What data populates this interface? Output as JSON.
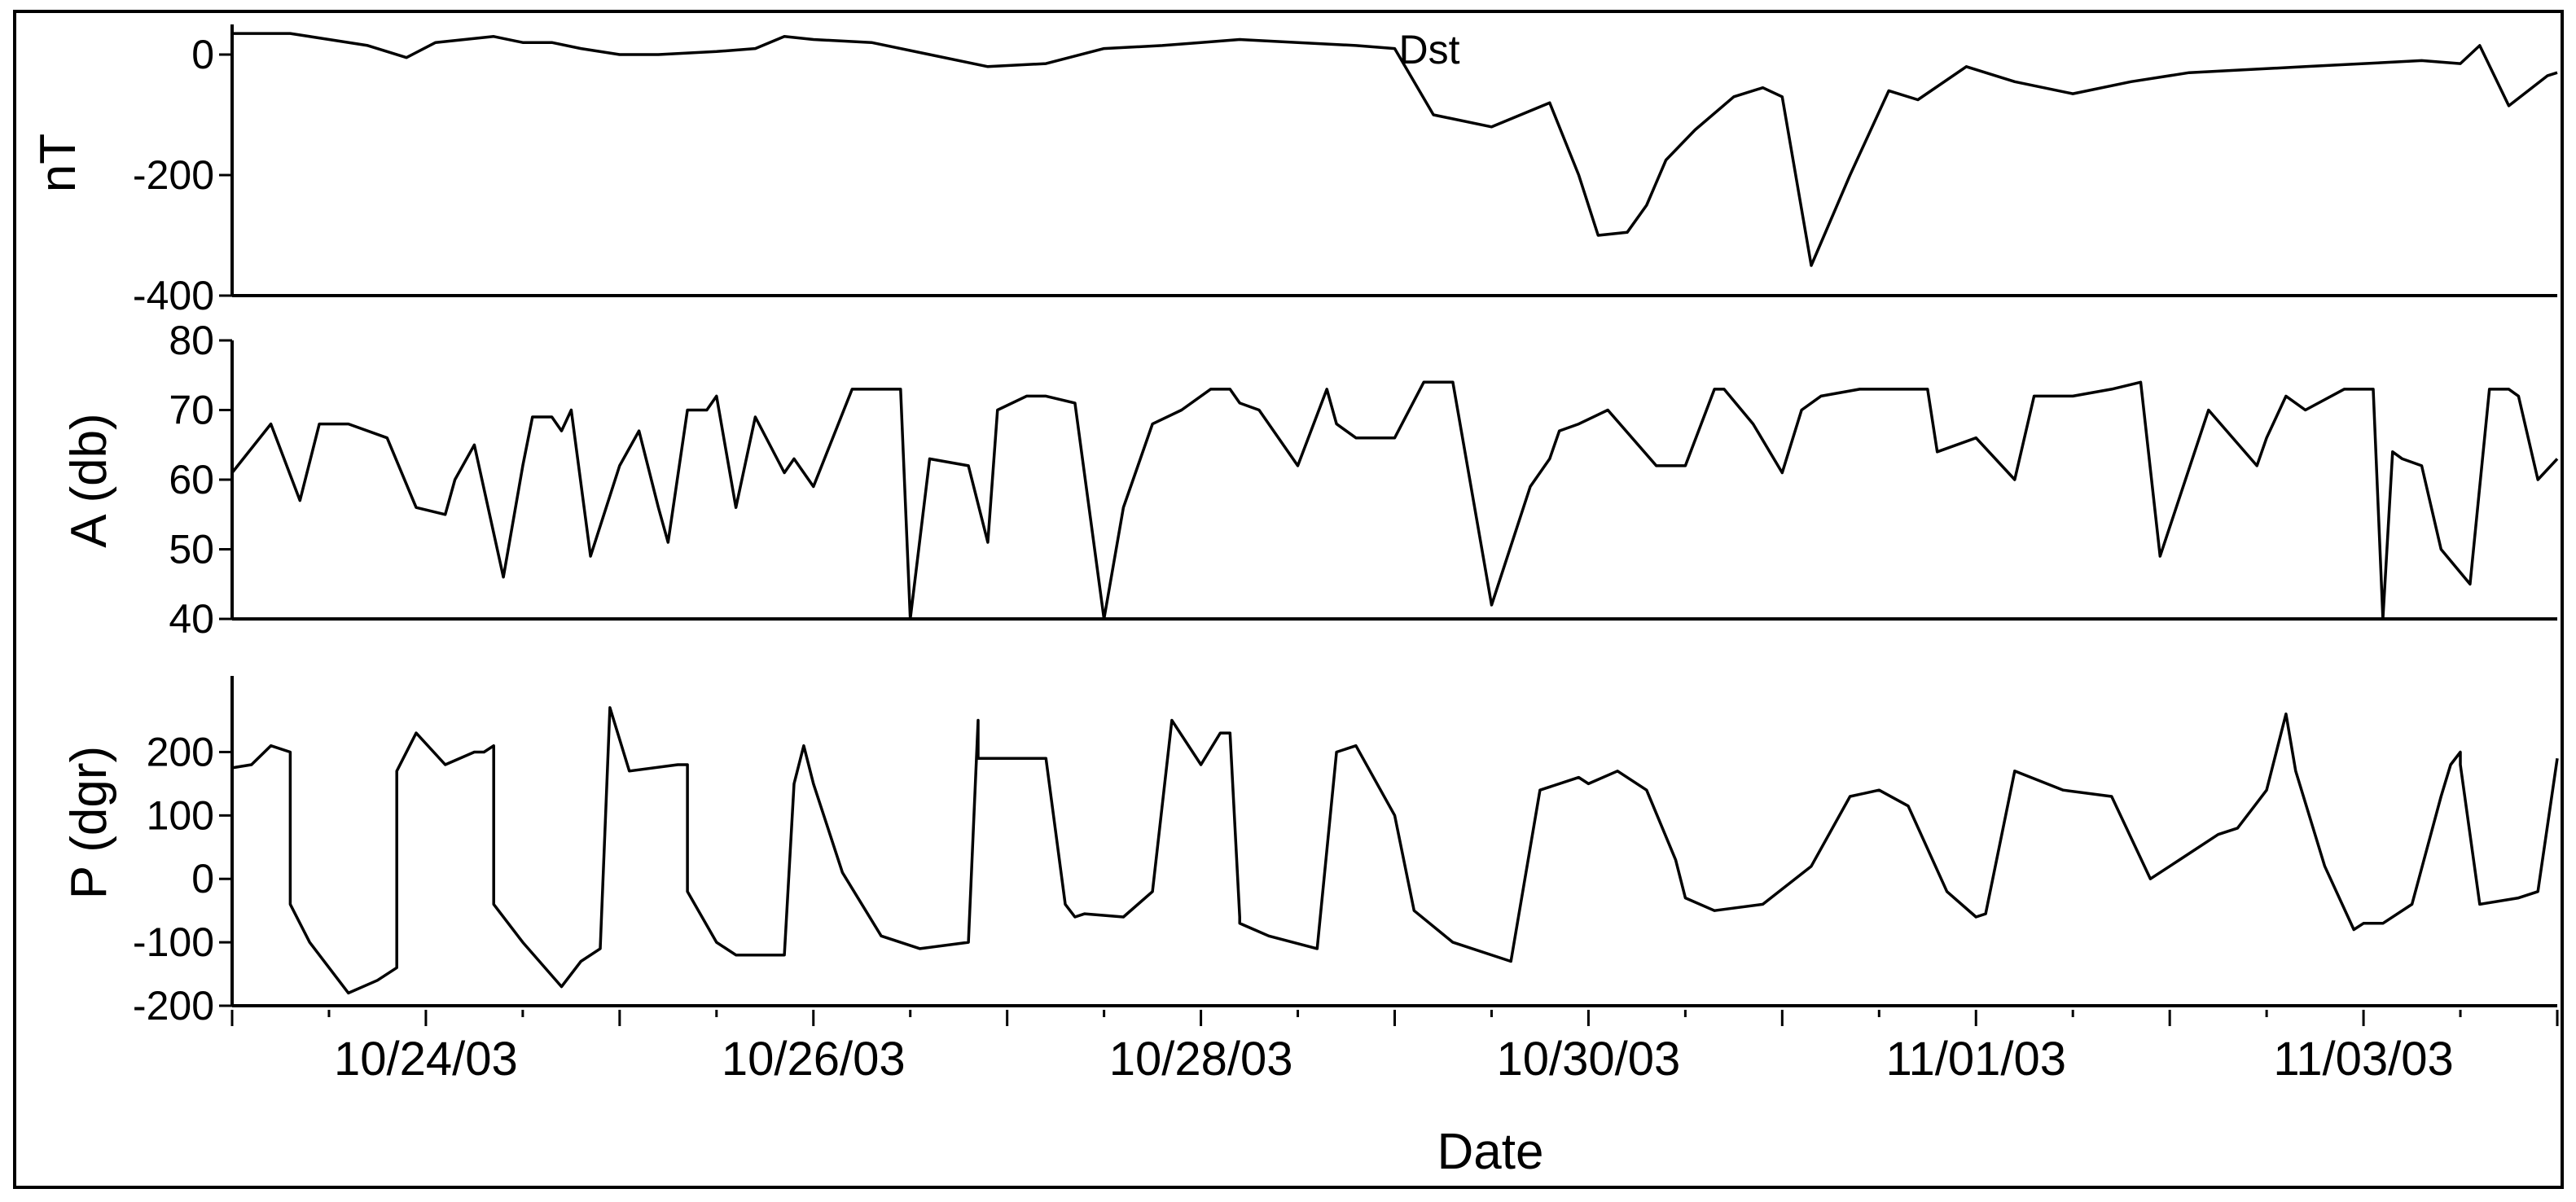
{
  "chart_data": [
    {
      "type": "line",
      "title": "Dst",
      "xlabel": "",
      "ylabel": "nT",
      "ylim": [
        -400,
        50
      ],
      "yticks": [
        0,
        -200,
        -400
      ],
      "ytick_labels": [
        "0",
        "-200",
        "-400"
      ],
      "xlim": [
        0,
        12
      ],
      "grid": false,
      "series": [
        {
          "name": "Dst",
          "x": [
            0,
            0.3,
            0.5,
            0.7,
            0.9,
            1.05,
            1.2,
            1.35,
            1.5,
            1.65,
            1.8,
            2.0,
            2.2,
            2.5,
            2.7,
            2.85,
            3.0,
            3.3,
            3.6,
            3.9,
            4.2,
            4.5,
            4.8,
            5.0,
            5.2,
            5.5,
            5.8,
            6.0,
            6.2,
            6.5,
            6.8,
            6.95,
            7.05,
            7.2,
            7.3,
            7.4,
            7.55,
            7.75,
            7.9,
            8.0,
            8.15,
            8.35,
            8.55,
            8.7,
            8.95,
            9.2,
            9.5,
            9.8,
            10.1,
            10.4,
            10.7,
            11.0,
            11.3,
            11.5,
            11.6,
            11.75,
            11.95,
            12.0
          ],
          "y": [
            35,
            35,
            25,
            15,
            -5,
            20,
            25,
            30,
            20,
            20,
            10,
            0,
            0,
            5,
            10,
            30,
            25,
            20,
            0,
            -20,
            -15,
            10,
            15,
            20,
            25,
            20,
            15,
            10,
            -100,
            -120,
            -80,
            -200,
            -300,
            -295,
            -250,
            -175,
            -125,
            -70,
            -55,
            -70,
            -350,
            -200,
            -60,
            -75,
            -20,
            -45,
            -65,
            -45,
            -30,
            -25,
            -20,
            -15,
            -10,
            -15,
            15,
            -85,
            -35,
            -30
          ]
        }
      ]
    },
    {
      "type": "line",
      "title": "",
      "xlabel": "",
      "ylabel": "A (db)",
      "ylim": [
        40,
        80
      ],
      "yticks": [
        80,
        70,
        60,
        50,
        40
      ],
      "ytick_labels": [
        "80",
        "70",
        "60",
        "50",
        "40"
      ],
      "xlim": [
        0,
        12
      ],
      "grid": false,
      "series": [
        {
          "name": "",
          "x": [
            0,
            0.2,
            0.35,
            0.45,
            0.6,
            0.8,
            0.95,
            1.1,
            1.15,
            1.25,
            1.4,
            1.5,
            1.55,
            1.65,
            1.7,
            1.75,
            1.85,
            2.0,
            2.1,
            2.2,
            2.25,
            2.35,
            2.45,
            2.5,
            2.6,
            2.7,
            2.85,
            2.9,
            3.0,
            3.2,
            3.3,
            3.45,
            3.5,
            3.6,
            3.8,
            3.9,
            3.95,
            4.1,
            4.2,
            4.35,
            4.5,
            4.6,
            4.75,
            4.9,
            5.05,
            5.15,
            5.2,
            5.3,
            5.5,
            5.65,
            5.7,
            5.8,
            6.0,
            6.15,
            6.3,
            6.5,
            6.7,
            6.8,
            6.85,
            6.95,
            7.1,
            7.35,
            7.5,
            7.65,
            7.7,
            7.85,
            8.0,
            8.1,
            8.2,
            8.4,
            8.6,
            8.75,
            8.8,
            9.0,
            9.2,
            9.3,
            9.5,
            9.7,
            9.85,
            9.95,
            10.2,
            10.45,
            10.5,
            10.6,
            10.7,
            10.9,
            11.05,
            11.1,
            11.15,
            11.2,
            11.3,
            11.4,
            11.55,
            11.65,
            11.75,
            11.8,
            11.9,
            12.0
          ],
          "y": [
            61,
            68,
            57,
            68,
            68,
            66,
            56,
            55,
            60,
            65,
            46,
            62,
            69,
            69,
            67,
            70,
            49,
            62,
            67,
            56,
            51,
            70,
            70,
            72,
            56,
            69,
            61,
            63,
            59,
            73,
            73,
            73,
            40,
            63,
            62,
            51,
            70,
            72,
            72,
            71,
            40,
            56,
            68,
            70,
            73,
            73,
            71,
            70,
            62,
            73,
            68,
            66,
            66,
            74,
            74,
            42,
            59,
            63,
            67,
            68,
            70,
            62,
            62,
            73,
            73,
            68,
            61,
            70,
            72,
            73,
            73,
            73,
            64,
            66,
            60,
            72,
            72,
            73,
            74,
            49,
            70,
            62,
            66,
            72,
            70,
            73,
            73,
            40,
            64,
            63,
            62,
            50,
            45,
            73,
            73,
            72,
            60,
            63
          ]
        }
      ]
    },
    {
      "type": "line",
      "title": "",
      "xlabel": "Date",
      "ylabel": "P (dgr)",
      "ylim": [
        -200,
        320
      ],
      "yticks": [
        200,
        100,
        0,
        -100,
        -200
      ],
      "ytick_labels": [
        "200",
        "100",
        "0",
        "-100",
        "-200"
      ],
      "xlim": [
        0,
        12
      ],
      "xticks": [
        1,
        3,
        5,
        7,
        9,
        11
      ],
      "xtick_labels": [
        "10/24/03",
        "10/26/03",
        "10/28/03",
        "10/30/03",
        "11/01/03",
        "11/03/03"
      ],
      "grid": false,
      "series": [
        {
          "name": "",
          "x": [
            0,
            0.1,
            0.2,
            0.3,
            0.3,
            0.4,
            0.6,
            0.75,
            0.85,
            0.85,
            0.95,
            1.1,
            1.25,
            1.3,
            1.35,
            1.35,
            1.5,
            1.7,
            1.8,
            1.9,
            1.95,
            2.05,
            2.3,
            2.35,
            2.35,
            2.5,
            2.6,
            2.85,
            2.9,
            2.95,
            3.0,
            3.15,
            3.35,
            3.55,
            3.8,
            3.85,
            3.85,
            4.0,
            4.2,
            4.3,
            4.35,
            4.4,
            4.6,
            4.75,
            4.85,
            5.0,
            5.1,
            5.15,
            5.2,
            5.2,
            5.35,
            5.6,
            5.7,
            5.8,
            6.0,
            6.1,
            6.3,
            6.6,
            6.75,
            6.95,
            7.0,
            7.15,
            7.3,
            7.45,
            7.5,
            7.65,
            7.9,
            8.15,
            8.35,
            8.5,
            8.65,
            8.85,
            9.0,
            9.05,
            9.2,
            9.45,
            9.7,
            9.9,
            10.05,
            10.25,
            10.35,
            10.45,
            10.5,
            10.6,
            10.65,
            10.8,
            10.95,
            11.0,
            11.1,
            11.25,
            11.4,
            11.45,
            11.5,
            11.5,
            11.6,
            11.8,
            11.9,
            12.0
          ],
          "y": [
            175,
            180,
            210,
            200,
            -40,
            -100,
            -180,
            -160,
            -140,
            170,
            230,
            180,
            200,
            200,
            210,
            -40,
            -100,
            -170,
            -130,
            -110,
            270,
            170,
            180,
            180,
            -20,
            -100,
            -120,
            -120,
            150,
            210,
            150,
            10,
            -90,
            -110,
            -100,
            250,
            190,
            190,
            190,
            -40,
            -60,
            -55,
            -60,
            -20,
            250,
            180,
            230,
            230,
            -60,
            -70,
            -90,
            -110,
            200,
            210,
            100,
            -50,
            -100,
            -130,
            140,
            160,
            150,
            170,
            140,
            30,
            -30,
            -50,
            -40,
            20,
            130,
            140,
            115,
            -20,
            -60,
            -55,
            170,
            140,
            130,
            0,
            30,
            70,
            80,
            120,
            140,
            260,
            170,
            20,
            -80,
            -70,
            -70,
            -40,
            130,
            180,
            200,
            180,
            -40,
            -30,
            -20,
            190
          ]
        }
      ]
    }
  ]
}
